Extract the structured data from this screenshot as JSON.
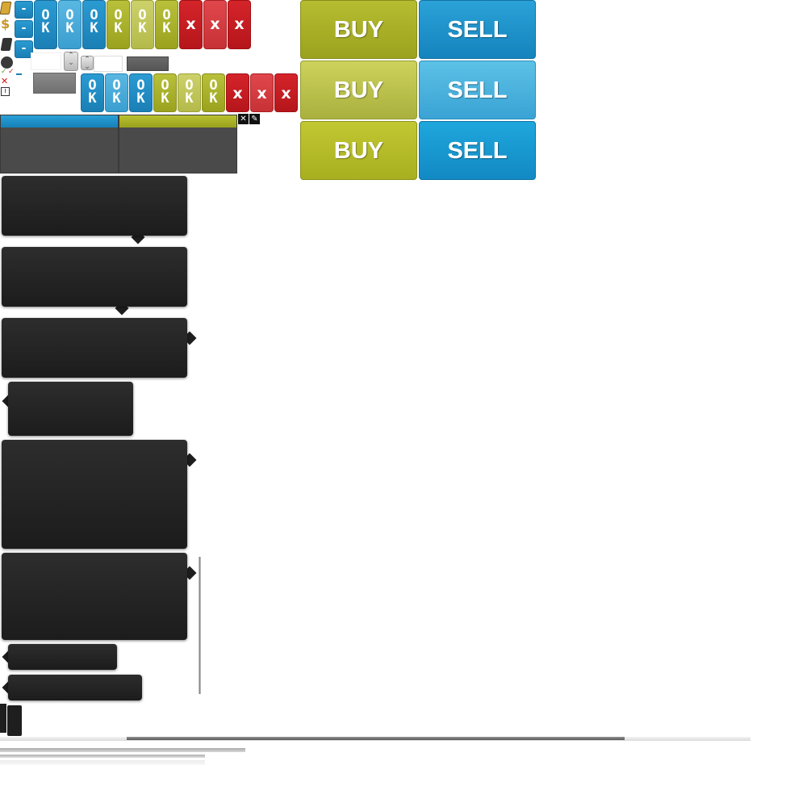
{
  "buttons": {
    "ok_label": "O K",
    "x_label": "x",
    "minus_label": "-",
    "buy_label": "BUY",
    "sell_label": "SELL"
  },
  "panels": {
    "edit_close_icon": "✕",
    "edit_pencil_icon": "✎"
  },
  "icons": {
    "info_icon": "i",
    "close_icon": "✕",
    "check_icon": "✓"
  },
  "colors": {
    "blue": "#1a7fb5",
    "olive": "#9aa21e",
    "red": "#b5161b",
    "tooltip": "#1e1e1e"
  }
}
